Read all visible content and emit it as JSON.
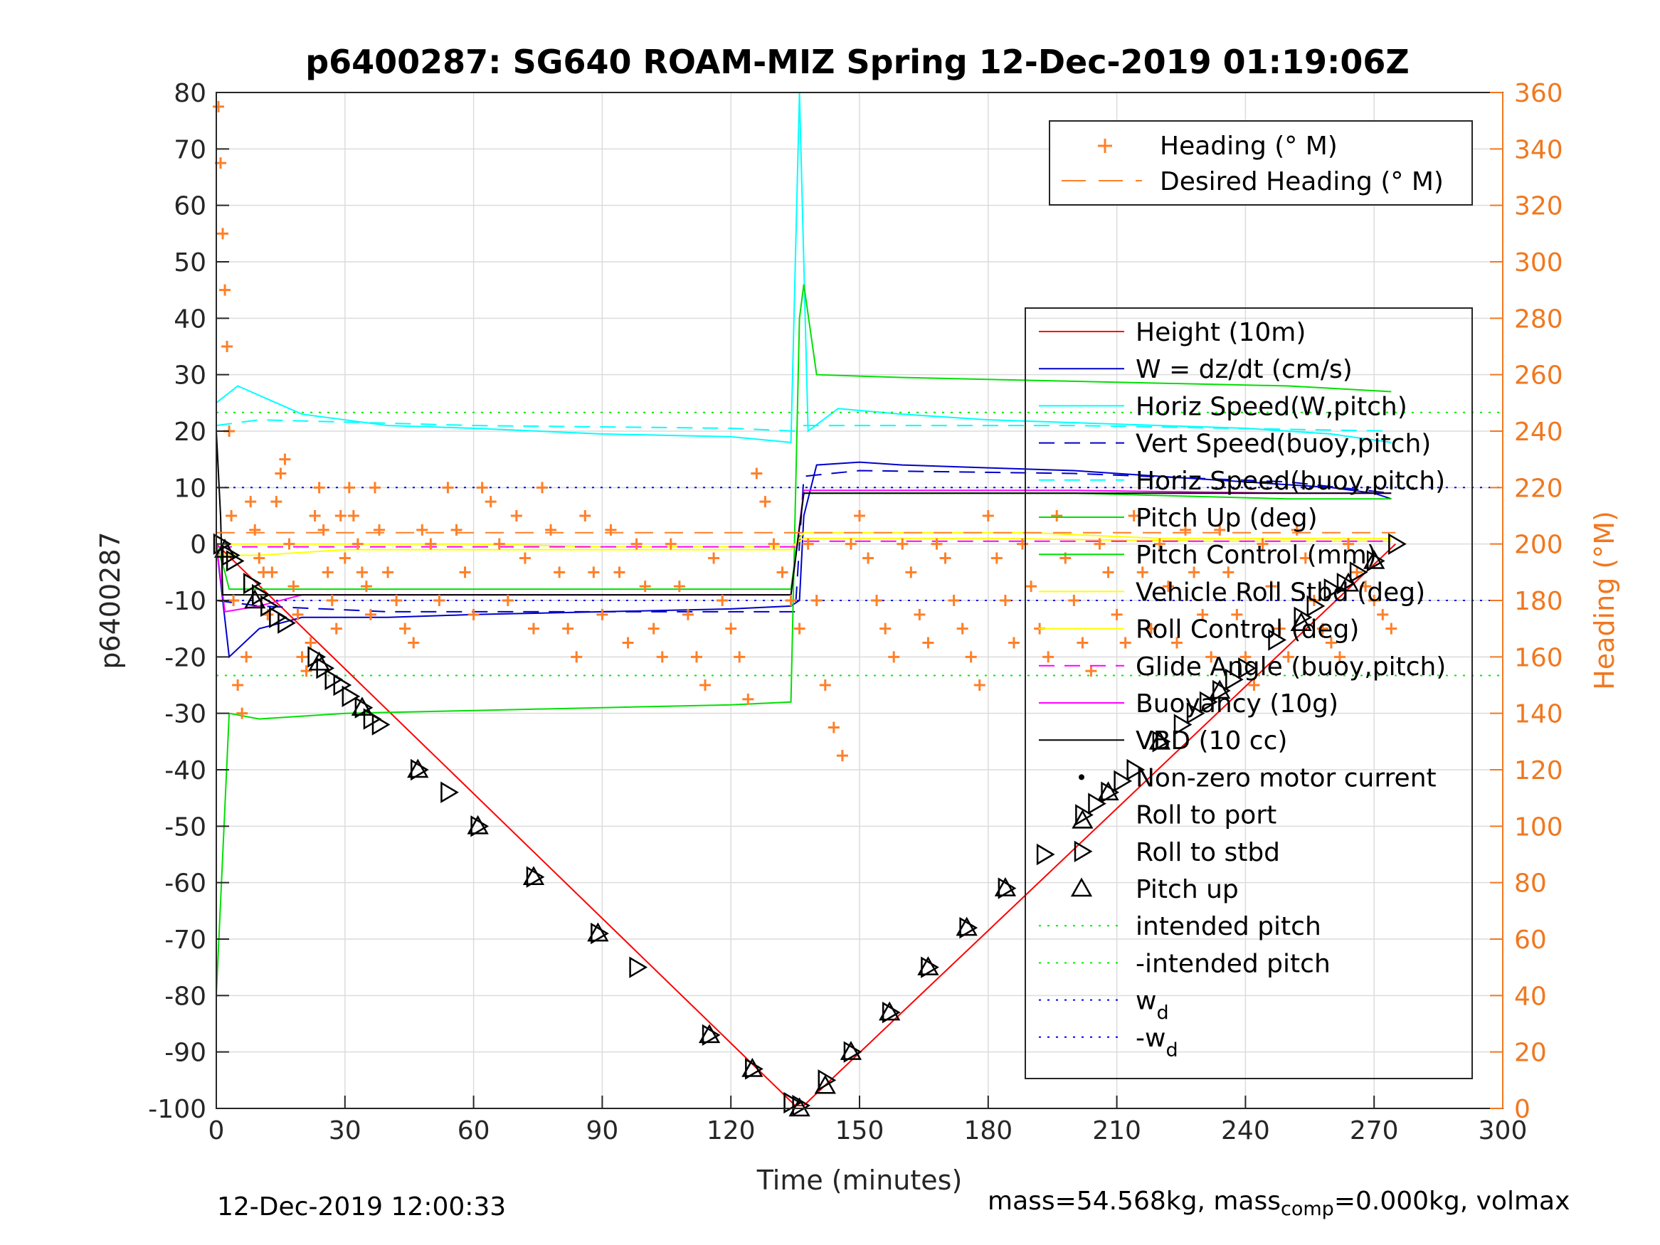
{
  "chart_data": {
    "type": "line",
    "title": "p6400287: SG640 ROAM-MIZ Spring 12-Dec-2019 01:19:06Z",
    "xlabel": "Time (minutes)",
    "ylabel": "p6400287",
    "y2label": "Heading (°M)",
    "xlim": [
      0,
      300
    ],
    "ylim": [
      -100,
      80
    ],
    "y2lim": [
      0,
      360
    ],
    "xticks": [
      "0",
      "30",
      "60",
      "90",
      "120",
      "150",
      "180",
      "210",
      "240",
      "270",
      "300"
    ],
    "yticks": [
      "80",
      "70",
      "60",
      "50",
      "40",
      "30",
      "20",
      "10",
      "0",
      "-10",
      "-20",
      "-30",
      "-40",
      "-50",
      "-60",
      "-70",
      "-80",
      "-90",
      "-100"
    ],
    "y2ticks": [
      "360",
      "340",
      "320",
      "300",
      "280",
      "260",
      "240",
      "220",
      "200",
      "180",
      "160",
      "140",
      "120",
      "100",
      "80",
      "60",
      "40",
      "20",
      "0"
    ],
    "grid": true,
    "colors": {
      "heading": "#FF7F27",
      "height": "#FF0000",
      "w": "#0000CC",
      "horiz": "#00FFFF",
      "pitch": "#00E000",
      "roll": "#FFFF00",
      "glide": "#FF00FF",
      "vbd": "#000000",
      "intended": "#00EE00",
      "wd": "#0000FF",
      "right_axis": "#F07820"
    },
    "legend_top": {
      "location": "top-right",
      "entries": [
        "Heading (° M)",
        "Desired Heading (° M)"
      ]
    },
    "legend_main": {
      "location": "right",
      "entries": [
        "Height (10m)",
        "W = dz/dt (cm/s)",
        "Horiz Speed(W,pitch)",
        "Vert Speed(buoy,pitch)",
        "Horiz Speed(buoy,pitch)",
        "Pitch Up (deg)",
        "Pitch Control (mm)",
        "Vehicle Roll Stbd (deg)",
        "Roll Control (deg)",
        "Glide Angle (buoy,pitch)",
        "Buoyancy (10g)",
        "VBD (10 cc)",
        "Non-zero motor current",
        "Roll to port",
        "Roll to stbd",
        "Pitch up",
        "intended pitch",
        "-intended pitch",
        "w",
        "-w"
      ],
      "subscript": "d"
    },
    "series": [
      {
        "name": "Height (10m)",
        "x": [
          0,
          135,
          137,
          275
        ],
        "y": [
          0,
          -99.5,
          -99.5,
          0
        ]
      },
      {
        "name": "W = dz/dt (cm/s)",
        "x": [
          0,
          3,
          10,
          20,
          40,
          60,
          90,
          120,
          134,
          136,
          137,
          140,
          150,
          160,
          180,
          200,
          220,
          240,
          260,
          270,
          274
        ],
        "y": [
          0,
          -20,
          -15,
          -13,
          -13,
          -12.5,
          -12,
          -11.5,
          -11,
          -10,
          5,
          14,
          14.5,
          14,
          13.5,
          13,
          12,
          11,
          10,
          9,
          8
        ]
      },
      {
        "name": "Horiz Speed(W,pitch)",
        "x": [
          0,
          5,
          20,
          40,
          60,
          90,
          120,
          134,
          136,
          138,
          145,
          160,
          180,
          200,
          220,
          240,
          260,
          274
        ],
        "y": [
          25,
          28,
          23,
          21,
          20.5,
          19.5,
          19,
          18,
          80,
          20,
          24,
          23,
          22,
          21.5,
          21,
          20.5,
          19.5,
          18
        ]
      },
      {
        "name": "Vert Speed(buoy,pitch)",
        "x": [
          0,
          10,
          40,
          80,
          120,
          135,
          137,
          150,
          200,
          250,
          274
        ],
        "y": [
          -10,
          -11,
          -12,
          -12,
          -12,
          -12,
          12,
          13,
          12.5,
          11,
          9
        ]
      },
      {
        "name": "Horiz Speed(buoy,pitch)",
        "x": [
          0,
          10,
          60,
          120,
          135,
          137,
          200,
          274
        ],
        "y": [
          21,
          22,
          21,
          20.5,
          20,
          21,
          21,
          20
        ]
      },
      {
        "name": "Pitch Up (deg)",
        "x": [
          0,
          3,
          10,
          30,
          60,
          90,
          120,
          134,
          136,
          137,
          140,
          160,
          190,
          220,
          250,
          274
        ],
        "y": [
          -80,
          -30,
          -31,
          -30,
          -29.5,
          -29,
          -28.5,
          -28,
          40,
          46,
          30,
          29.5,
          29,
          28.5,
          28,
          27
        ]
      },
      {
        "name": "Pitch Control (mm)",
        "x": [
          0,
          2,
          3,
          10,
          60,
          120,
          134,
          137,
          150,
          200,
          250,
          274
        ],
        "y": [
          0,
          -5,
          -8,
          -8,
          -8,
          -8,
          -8,
          9,
          9,
          9,
          8,
          8
        ]
      },
      {
        "name": "Vehicle Roll Stbd (deg)",
        "x": [
          0,
          30,
          60,
          90,
          120,
          134,
          137,
          180,
          230,
          274
        ],
        "y": [
          0,
          0,
          0,
          -0.5,
          -0.5,
          -0.5,
          1,
          1,
          0.5,
          0.5
        ]
      },
      {
        "name": "Roll Control (deg)",
        "x": [
          0,
          10,
          30,
          60,
          90,
          120,
          134,
          137,
          160,
          190,
          220,
          250,
          274
        ],
        "y": [
          -2,
          -2,
          -1,
          -1,
          -1,
          -1,
          -1,
          2,
          2,
          2,
          1,
          1,
          1
        ]
      },
      {
        "name": "Glide Angle (buoy,pitch)",
        "x": [
          0,
          30,
          60,
          120,
          135,
          137,
          180,
          274
        ],
        "y": [
          -0.5,
          -0.5,
          -0.5,
          -0.5,
          -0.5,
          0.5,
          0.5,
          0.5
        ]
      },
      {
        "name": "Buoyancy (10g)",
        "x": [
          0,
          2,
          10,
          20,
          60,
          120,
          134,
          137,
          150,
          200,
          250,
          274
        ],
        "y": [
          0,
          -12,
          -11,
          -9,
          -9,
          -9,
          -9,
          9.5,
          9.5,
          9.5,
          9,
          9
        ]
      },
      {
        "name": "VBD (10 cc)",
        "x": [
          0,
          1,
          1.5,
          120,
          134,
          137,
          150,
          200,
          250,
          274
        ],
        "y": [
          20,
          5,
          -9,
          -9,
          -9,
          9,
          9,
          9,
          9,
          9
        ]
      },
      {
        "name": "intended pitch",
        "x": [
          0,
          300
        ],
        "y": [
          23.3,
          23.3
        ]
      },
      {
        "name": "-intended pitch",
        "x": [
          0,
          300
        ],
        "y": [
          -23.3,
          -23.3
        ]
      },
      {
        "name": "w",
        "x": [
          0,
          300
        ],
        "y": [
          10,
          10
        ]
      },
      {
        "name": "-w",
        "x": [
          0,
          300
        ],
        "y": [
          -10,
          -10
        ]
      }
    ],
    "heading": {
      "name": "Heading (° M)",
      "x": [
        0.5,
        1,
        1.5,
        2,
        2.5,
        3,
        3.5,
        4,
        5,
        6,
        7,
        8,
        9,
        10,
        11,
        12,
        13,
        14,
        15,
        16,
        17,
        18,
        19,
        20,
        21,
        22,
        23,
        24,
        25,
        26,
        27,
        28,
        29,
        30,
        31,
        32,
        33,
        34,
        35,
        36,
        37,
        38,
        40,
        42,
        44,
        46,
        48,
        50,
        52,
        54,
        56,
        58,
        60,
        62,
        64,
        66,
        68,
        70,
        72,
        74,
        76,
        78,
        80,
        82,
        84,
        86,
        88,
        90,
        92,
        94,
        96,
        98,
        100,
        102,
        104,
        106,
        108,
        110,
        112,
        114,
        116,
        118,
        120,
        122,
        124,
        126,
        128,
        130,
        132,
        134,
        136,
        138,
        140,
        142,
        144,
        146,
        148,
        150,
        152,
        154,
        156,
        158,
        160,
        162,
        164,
        166,
        168,
        170,
        172,
        174,
        176,
        178,
        180,
        182,
        184,
        186,
        188,
        190,
        192,
        194,
        196,
        198,
        200,
        202,
        204,
        206,
        208,
        210,
        212,
        214,
        216,
        218,
        220,
        222,
        224,
        226,
        228,
        230,
        232,
        234,
        236,
        238,
        240,
        242,
        244,
        246,
        248,
        250,
        252,
        254,
        256,
        258,
        260,
        262,
        264,
        266,
        268,
        270,
        272,
        274
      ],
      "y": [
        355,
        335,
        310,
        290,
        270,
        240,
        210,
        180,
        150,
        140,
        160,
        215,
        205,
        195,
        190,
        175,
        190,
        215,
        225,
        230,
        200,
        185,
        175,
        160,
        155,
        165,
        210,
        220,
        205,
        190,
        180,
        170,
        210,
        195,
        220,
        210,
        200,
        190,
        185,
        175,
        220,
        205,
        190,
        180,
        170,
        165,
        205,
        200,
        180,
        220,
        205,
        190,
        175,
        220,
        215,
        200,
        180,
        210,
        195,
        170,
        220,
        205,
        190,
        170,
        160,
        210,
        190,
        175,
        205,
        190,
        165,
        200,
        185,
        170,
        160,
        200,
        185,
        175,
        160,
        150,
        195,
        180,
        170,
        160,
        145,
        225,
        215,
        200,
        190,
        180,
        170,
        200,
        180,
        150,
        135,
        125,
        200,
        210,
        195,
        180,
        170,
        160,
        200,
        190,
        175,
        165,
        200,
        195,
        180,
        170,
        160,
        150,
        210,
        195,
        180,
        165,
        200,
        185,
        170,
        160,
        210,
        195,
        180,
        165,
        155,
        200,
        190,
        175,
        165,
        210,
        190,
        170,
        200,
        185,
        165,
        205,
        190,
        175,
        160,
        205,
        190,
        175,
        160,
        150,
        200,
        185,
        170,
        160,
        205,
        195,
        180,
        170,
        165,
        160,
        200,
        190,
        185,
        180,
        175,
        170
      ]
    },
    "desired_heading": {
      "name": "Desired Heading (° M)",
      "value": 204
    },
    "roll_to_stbd_markers": {
      "x": [
        1,
        3,
        4,
        8,
        10,
        12,
        14,
        16,
        23,
        25,
        27,
        29,
        31,
        34,
        36,
        38,
        47,
        54,
        61,
        74,
        89,
        98,
        115,
        125,
        134,
        136,
        142,
        148,
        157,
        166,
        175,
        184,
        193,
        202,
        205,
        208,
        211,
        214,
        220,
        225,
        228,
        231,
        234,
        237,
        240,
        247,
        253,
        256,
        260,
        263,
        266,
        270,
        275
      ],
      "y": [
        0,
        -2,
        -3,
        -7,
        -9,
        -11,
        -13,
        -14,
        -20,
        -22,
        -24,
        -25,
        -27,
        -29,
        -31,
        -32,
        -40,
        -44,
        -50,
        -59,
        -69,
        -75,
        -87,
        -93,
        -99,
        -99.5,
        -95,
        -90,
        -83,
        -75,
        -68,
        -61,
        -55,
        -48,
        -46,
        -44,
        -42,
        -40,
        -35,
        -32,
        -30,
        -28,
        -26,
        -24,
        -22,
        -17,
        -13,
        -11,
        -8,
        -7,
        -5,
        -3,
        0
      ]
    },
    "pitch_up_markers": {
      "x": [
        2,
        9,
        24,
        34,
        47,
        61,
        74,
        89,
        115,
        125,
        136,
        142,
        148,
        157,
        166,
        175,
        184,
        202,
        208,
        220,
        234,
        253,
        264,
        270
      ],
      "y": [
        -1,
        -10,
        -21,
        -29,
        -40,
        -50,
        -59,
        -69,
        -87,
        -93,
        -100,
        -96,
        -90,
        -83,
        -75,
        -68,
        -61,
        -49,
        -44,
        -35,
        -26,
        -14,
        -7,
        -3
      ]
    },
    "footer_left": "12-Dec-2019 12:00:33",
    "footer_right": {
      "a": "mass=54.568kg, mass",
      "sub": "comp",
      "b": "=0.000kg, volmax"
    }
  }
}
